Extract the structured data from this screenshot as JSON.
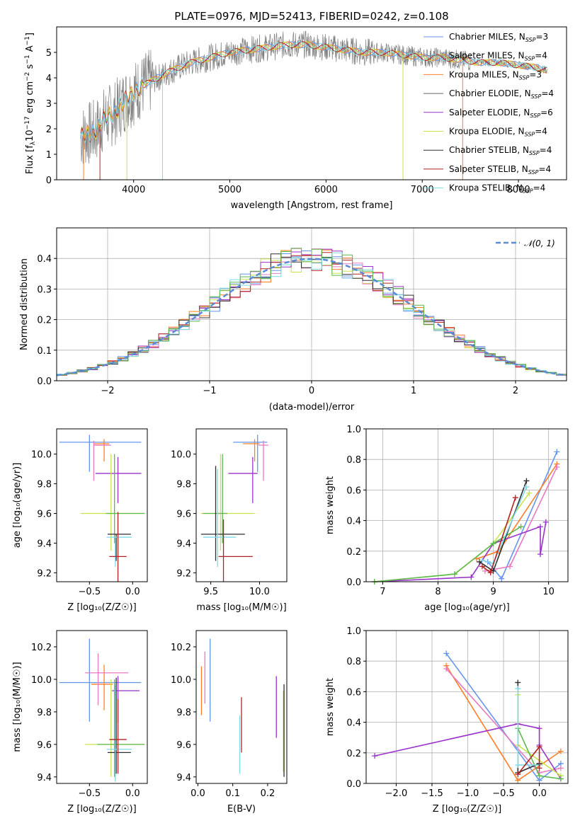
{
  "title": "PLATE=0976, MJD=52413, FIBERID=0242, z=0.108",
  "colors": {
    "Chabrier MILES": "#6495ed",
    "Salpeter MILES": "#708090",
    "Kroupa MILES": "#ff7f27",
    "Chabrier ELODIE": "#666666",
    "Salpeter ELODIE": "#9932cc",
    "Kroupa ELODIE": "#c8e34a",
    "Chabrier STELIB": "#2f2f2f",
    "Salpeter STELIB": "#b22222",
    "Kroupa STELIB": "#7fdbe6",
    "normal": "#5b8bd6",
    "spectrum": "#808080",
    "pink": "#e87ac0",
    "green": "#5bb84a"
  },
  "legend": [
    {
      "name": "Chabrier MILES, N",
      "sub": "SSP",
      "n": "=3"
    },
    {
      "name": "Salpeter MILES, N",
      "sub": "SSP",
      "n": "=4"
    },
    {
      "name": "Kroupa MILES, N",
      "sub": "SSP",
      "n": "=3"
    },
    {
      "name": "Chabrier ELODIE, N",
      "sub": "SSP",
      "n": "=4"
    },
    {
      "name": "Salpeter ELODIE, N",
      "sub": "SSP",
      "n": "=6"
    },
    {
      "name": "Kroupa ELODIE, N",
      "sub": "SSP",
      "n": "=4"
    },
    {
      "name": "Chabrier STELIB, N",
      "sub": "SSP",
      "n": "=4"
    },
    {
      "name": "Salpeter STELIB, N",
      "sub": "SSP",
      "n": "=4"
    },
    {
      "name": "Kroupa STELIB, N",
      "sub": "SSP",
      "n": "=4"
    }
  ],
  "chart_data": [
    {
      "type": "line",
      "id": "spectrum",
      "xlabel": "wavelength [Angstrom, rest frame]",
      "ylabel": "Flux [f_λ 10^-17 erg cm^-2 s^-1 A^-1]",
      "xlim": [
        3200,
        8500
      ],
      "ylim": [
        0,
        6
      ],
      "xticks": [
        4000,
        5000,
        6000,
        7000,
        8000
      ],
      "yticks": [
        0,
        1,
        2,
        3,
        4,
        5
      ],
      "grid": false,
      "legend_position": "right",
      "continuum": {
        "x": [
          3450,
          3600,
          3700,
          3800,
          3900,
          4000,
          4100,
          4200,
          4400,
          4600,
          4800,
          5000,
          5200,
          5400,
          5600,
          5800,
          6000,
          6200,
          6400,
          6600,
          6800,
          7000,
          7200,
          7400,
          7600,
          7800,
          8000,
          8200,
          8300
        ],
        "y": [
          1.7,
          1.9,
          2.4,
          2.6,
          3.1,
          3.4,
          3.7,
          3.9,
          4.3,
          4.6,
          4.8,
          5.0,
          5.1,
          5.2,
          5.3,
          5.3,
          5.2,
          5.1,
          5.0,
          5.0,
          4.9,
          4.8,
          4.8,
          4.7,
          4.6,
          4.6,
          4.5,
          4.4,
          4.3
        ]
      }
    },
    {
      "type": "histogram",
      "id": "residuals",
      "xlabel": "(data-model)/error",
      "ylabel": "Normed distribution",
      "xlim": [
        -2.5,
        2.5
      ],
      "ylim": [
        0,
        0.5
      ],
      "xticks": [
        -2,
        -1,
        0,
        1,
        2
      ],
      "yticks": [
        0.0,
        0.1,
        0.2,
        0.3,
        0.4
      ],
      "grid": true,
      "bin_width": 0.1,
      "reference_curve": "N(0,1)",
      "legend_label": "N(0,1)"
    },
    {
      "type": "errorbar",
      "id": "age-vs-Z",
      "xlabel": "Z [log10(Z/Z☉)]",
      "ylabel": "age [log10(age/yr)]",
      "xlim": [
        -0.88,
        0.17
      ],
      "ylim": [
        9.14,
        10.17
      ],
      "xticks": [
        -0.5,
        0.0
      ],
      "yticks": [
        9.2,
        9.4,
        9.6,
        9.8,
        10.0
      ],
      "points": [
        {
          "s": "Chabrier MILES",
          "x": -0.5,
          "xe": [
            0.35,
            0.6
          ],
          "y": 10.08,
          "ye": [
            0.2,
            0.05
          ]
        },
        {
          "s": "Kroupa MILES",
          "x": -0.33,
          "xe": [
            0.12,
            0.06
          ],
          "y": 10.07,
          "ye": [
            0.12,
            0.03
          ]
        },
        {
          "s": "pink",
          "x": -0.45,
          "xe": [
            0.0,
            0.2
          ],
          "y": 10.06,
          "ye": [
            0.24,
            0.03
          ]
        },
        {
          "s": "Salpeter ELODIE",
          "x": -0.17,
          "xe": [
            0.26,
            0.27
          ],
          "y": 9.87,
          "ye": [
            0.2,
            0.11
          ]
        },
        {
          "s": "Kroupa ELODIE",
          "x": -0.25,
          "xe": [
            0.35,
            0.35
          ],
          "y": 9.6,
          "ye": [
            0.25,
            0.4
          ]
        },
        {
          "s": "green",
          "x": -0.21,
          "xe": [
            0.1,
            0.35
          ],
          "y": 9.6,
          "ye": [
            0.2,
            0.4
          ]
        },
        {
          "s": "Chabrier STELIB",
          "x": -0.19,
          "xe": [
            0.1,
            0.17
          ],
          "y": 9.46,
          "ye": [
            0.18,
            0.0
          ]
        },
        {
          "s": "Kroupa STELIB",
          "x": -0.2,
          "xe": [
            0.1,
            0.19
          ],
          "y": 9.44,
          "ye": [
            0.2,
            0.0
          ]
        },
        {
          "s": "Salpeter STELIB",
          "x": -0.17,
          "xe": [
            0.1,
            0.1
          ],
          "y": 9.31,
          "ye": [
            0.17,
            0.3
          ]
        }
      ]
    },
    {
      "type": "errorbar",
      "id": "age-vs-mass",
      "xlabel": "mass [log10(M/M☉)]",
      "ylabel": "",
      "xlim": [
        9.35,
        10.28
      ],
      "ylim": [
        9.14,
        10.17
      ],
      "xticks": [
        9.5,
        10.0
      ],
      "yticks": [
        9.2,
        9.4,
        9.6,
        9.8,
        10.0
      ],
      "points": [
        {
          "s": "Chabrier MILES",
          "x": 9.98,
          "xe": [
            0.25,
            0.1
          ],
          "y": 10.08,
          "ye": [
            0.2,
            0.05
          ]
        },
        {
          "s": "Kroupa MILES",
          "x": 9.95,
          "xe": [
            0.12,
            0.05
          ],
          "y": 10.07,
          "ye": [
            0.12,
            0.03
          ]
        },
        {
          "s": "pink",
          "x": 10.04,
          "xe": [
            0.05,
            0.05
          ],
          "y": 10.06,
          "ye": [
            0.24,
            0.03
          ]
        },
        {
          "s": "Salpeter ELODIE",
          "x": 9.93,
          "xe": [
            0.25,
            0.05
          ],
          "y": 9.87,
          "ye": [
            0.2,
            0.11
          ]
        },
        {
          "s": "Kroupa ELODIE",
          "x": 9.6,
          "xe": [
            0.2,
            0.35
          ],
          "y": 9.6,
          "ye": [
            0.25,
            0.4
          ]
        },
        {
          "s": "green",
          "x": 9.62,
          "xe": [
            0.2,
            0.05
          ],
          "y": 9.6,
          "ye": [
            0.2,
            0.4
          ]
        },
        {
          "s": "Chabrier STELIB",
          "x": 9.55,
          "xe": [
            0.15,
            0.3
          ],
          "y": 9.46,
          "ye": [
            0.18,
            0.46
          ]
        },
        {
          "s": "Kroupa STELIB",
          "x": 9.57,
          "xe": [
            0.15,
            0.19
          ],
          "y": 9.44,
          "ye": [
            0.2,
            0.46
          ]
        },
        {
          "s": "Salpeter STELIB",
          "x": 9.63,
          "xe": [
            0.05,
            0.3
          ],
          "y": 9.31,
          "ye": [
            0.17,
            0.25
          ]
        }
      ]
    },
    {
      "type": "line",
      "id": "mass-weight-vs-age",
      "xlabel": "age [log10(age/yr)]",
      "ylabel": "mass weight",
      "xlim": [
        6.7,
        10.35
      ],
      "ylim": [
        0.0,
        1.0
      ],
      "xticks": [
        7,
        8,
        9,
        10
      ],
      "yticks": [
        0.0,
        0.2,
        0.4,
        0.6,
        0.8,
        1.0
      ],
      "grid": true,
      "series": [
        {
          "s": "Chabrier MILES",
          "x": [
            8.9,
            9.15,
            10.15
          ],
          "y": [
            0.13,
            0.02,
            0.85
          ]
        },
        {
          "s": "Kroupa MILES",
          "x": [
            8.7,
            9.1,
            10.15
          ],
          "y": [
            0.15,
            0.2,
            0.77
          ]
        },
        {
          "s": "pink",
          "x": [
            8.85,
            9.3,
            10.15
          ],
          "y": [
            0.07,
            0.1,
            0.75
          ]
        },
        {
          "s": "Salpeter ELODIE",
          "x": [
            6.85,
            8.6,
            9.0,
            9.85,
            9.85,
            9.95
          ],
          "y": [
            0.0,
            0.03,
            0.25,
            0.36,
            0.18,
            0.39
          ]
        },
        {
          "s": "Kroupa ELODIE",
          "x": [
            6.85,
            8.3,
            9.0,
            9.65
          ],
          "y": [
            0.0,
            0.05,
            0.25,
            0.58
          ]
        },
        {
          "s": "green",
          "x": [
            6.85,
            8.3,
            9.0,
            9.5
          ],
          "y": [
            0.0,
            0.05,
            0.25,
            0.36
          ]
        },
        {
          "s": "Chabrier STELIB",
          "x": [
            8.75,
            9.0,
            9.6
          ],
          "y": [
            0.13,
            0.07,
            0.66
          ]
        },
        {
          "s": "Kroupa STELIB",
          "x": [
            8.8,
            9.0,
            9.6
          ],
          "y": [
            0.14,
            0.12,
            0.62
          ]
        },
        {
          "s": "Salpeter STELIB",
          "x": [
            8.8,
            8.95,
            9.4
          ],
          "y": [
            0.1,
            0.06,
            0.55
          ]
        }
      ]
    },
    {
      "type": "errorbar",
      "id": "mass-vs-Z",
      "xlabel": "Z [log10(Z/Z☉)]",
      "ylabel": "mass [log10(M/M☉)]",
      "xlim": [
        -0.88,
        0.17
      ],
      "ylim": [
        9.36,
        10.3
      ],
      "xticks": [
        -0.5,
        0.0
      ],
      "yticks": [
        9.4,
        9.6,
        9.8,
        10.0,
        10.2
      ],
      "points": [
        {
          "s": "Chabrier MILES",
          "x": -0.5,
          "xe": [
            0.35,
            0.6
          ],
          "y": 9.98,
          "ye": [
            0.24,
            0.27
          ]
        },
        {
          "s": "Kroupa MILES",
          "x": -0.33,
          "xe": [
            0.15,
            0.1
          ],
          "y": 9.97,
          "ye": [
            0.16,
            0.12
          ]
        },
        {
          "s": "pink",
          "x": -0.4,
          "xe": [
            0.15,
            0.35
          ],
          "y": 10.04,
          "ye": [
            0.2,
            0.12
          ]
        },
        {
          "s": "Salpeter ELODIE",
          "x": -0.17,
          "xe": [
            0.07,
            0.25
          ],
          "y": 9.93,
          "ye": [
            0.2,
            0.09
          ]
        },
        {
          "s": "Kroupa ELODIE",
          "x": -0.25,
          "xe": [
            0.3,
            0.38
          ],
          "y": 9.6,
          "ye": [
            0.2,
            0.4
          ]
        },
        {
          "s": "green",
          "x": -0.21,
          "xe": [
            0.2,
            0.35
          ],
          "y": 9.6,
          "ye": [
            0.2,
            0.4
          ]
        },
        {
          "s": "Chabrier STELIB",
          "x": -0.19,
          "xe": [
            0.1,
            0.17
          ],
          "y": 9.55,
          "ye": [
            0.13,
            0.46
          ]
        },
        {
          "s": "Kroupa STELIB",
          "x": -0.2,
          "xe": [
            0.1,
            0.19
          ],
          "y": 9.57,
          "ye": [
            0.2,
            0.4
          ]
        },
        {
          "s": "Salpeter STELIB",
          "x": -0.17,
          "xe": [
            0.1,
            0.1
          ],
          "y": 9.63,
          "ye": [
            0.21,
            0.25
          ]
        }
      ]
    },
    {
      "type": "errorbar",
      "id": "mass-vs-ebv",
      "xlabel": "E(B-V)",
      "ylabel": "",
      "xlim": [
        -0.005,
        0.255
      ],
      "ylim": [
        9.36,
        10.3
      ],
      "xticks": [
        0.0,
        0.1,
        0.2
      ],
      "yticks": [
        9.4,
        9.6,
        9.8,
        10.0,
        10.2
      ],
      "points": [
        {
          "s": "Kroupa MILES",
          "x": 0.01,
          "y": 9.93,
          "ye": [
            0.15,
            0.15
          ]
        },
        {
          "s": "pink",
          "x": 0.02,
          "y": 10.0,
          "ye": [
            0.15,
            0.17
          ]
        },
        {
          "s": "Chabrier MILES",
          "x": 0.035,
          "y": 10.0,
          "ye": [
            0.26,
            0.25
          ]
        },
        {
          "s": "Salpeter STELIB",
          "x": 0.125,
          "y": 9.65,
          "ye": [
            0.1,
            0.24
          ]
        },
        {
          "s": "Kroupa STELIB",
          "x": 0.12,
          "y": 9.6,
          "ye": [
            0.18,
            0.18
          ]
        },
        {
          "s": "Salpeter ELODIE",
          "x": 0.225,
          "y": 9.83,
          "ye": [
            0.19,
            0.19
          ]
        },
        {
          "s": "Kroupa ELODIE",
          "x": 0.245,
          "y": 9.68,
          "ye": [
            0.25,
            0.25
          ]
        },
        {
          "s": "Chabrier STELIB",
          "x": 0.247,
          "y": 9.68,
          "ye": [
            0.28,
            0.29
          ]
        }
      ]
    },
    {
      "type": "line",
      "id": "mass-weight-vs-Z",
      "xlabel": "Z [log10(Z/Z☉)]",
      "ylabel": "mass weight",
      "xlim": [
        -2.42,
        0.4
      ],
      "ylim": [
        0.0,
        1.0
      ],
      "xticks": [
        -2.0,
        -1.5,
        -1.0,
        -0.5,
        0.0
      ],
      "yticks": [
        0.0,
        0.2,
        0.4,
        0.6,
        0.8,
        1.0
      ],
      "grid": true,
      "series": [
        {
          "s": "Chabrier MILES",
          "x": [
            -1.3,
            0.0,
            0.3
          ],
          "y": [
            0.85,
            0.02,
            0.13
          ]
        },
        {
          "s": "Kroupa MILES",
          "x": [
            -1.3,
            -0.3,
            0.3
          ],
          "y": [
            0.77,
            0.02,
            0.21
          ]
        },
        {
          "s": "pink",
          "x": [
            -1.3,
            0.0,
            0.3
          ],
          "y": [
            0.75,
            0.07,
            0.1
          ]
        },
        {
          "s": "Salpeter ELODIE",
          "x": [
            -2.3,
            -0.3,
            0.0,
            0.0,
            0.3
          ],
          "y": [
            0.18,
            0.39,
            0.36,
            0.25,
            0.03
          ]
        },
        {
          "s": "Kroupa ELODIE",
          "x": [
            -0.3,
            -0.3,
            0.3
          ],
          "y": [
            0.58,
            0.25,
            0.05
          ]
        },
        {
          "s": "green",
          "x": [
            -0.3,
            0.0,
            0.3
          ],
          "y": [
            0.36,
            0.05,
            0.03
          ]
        },
        {
          "s": "Chabrier STELIB",
          "x": [
            -0.3,
            -0.3,
            0.0
          ],
          "y": [
            0.66,
            0.07,
            0.13
          ]
        },
        {
          "s": "Kroupa STELIB",
          "x": [
            -0.3,
            -0.3,
            0.0
          ],
          "y": [
            0.62,
            0.12,
            0.12
          ]
        },
        {
          "s": "Salpeter STELIB",
          "x": [
            -0.3,
            0.0,
            0.0
          ],
          "y": [
            0.06,
            0.24,
            0.1
          ]
        }
      ]
    }
  ]
}
